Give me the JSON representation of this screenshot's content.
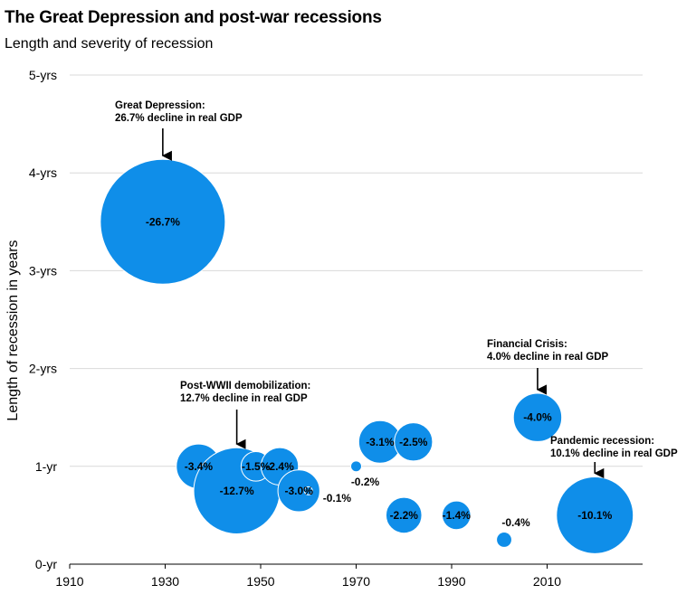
{
  "page": {
    "title": "The Great Depression and post-war recessions",
    "subtitle": "Length and severity of recession"
  },
  "chart_data": {
    "type": "bubble",
    "title": "The Great Depression and post-war recessions",
    "subtitle": "Length and severity of recession",
    "ylabel": "Length of recession in years",
    "xlabel": "",
    "xlim": [
      1910,
      2030
    ],
    "ylim": [
      0,
      5
    ],
    "xticks": [
      1910,
      1930,
      1950,
      1970,
      1990,
      2010
    ],
    "yticks": [
      {
        "value": 0,
        "label": "0-yr"
      },
      {
        "value": 1,
        "label": "1-yr"
      },
      {
        "value": 2,
        "label": "2-yrs"
      },
      {
        "value": 3,
        "label": "3-yrs"
      },
      {
        "value": 4,
        "label": "4-yrs"
      },
      {
        "value": 5,
        "label": "5-yrs"
      }
    ],
    "grid": "horizontal",
    "bubble_color": "#0f8ee9",
    "points": [
      {
        "x": 1929.5,
        "y": 3.5,
        "gdp_decline": 26.7,
        "label": "-26.7%",
        "label_position": "center"
      },
      {
        "x": 1937,
        "y": 1.0,
        "gdp_decline": 3.4,
        "label": "-3.4%",
        "label_position": "center"
      },
      {
        "x": 1945,
        "y": 0.75,
        "gdp_decline": 12.7,
        "label": "-12.7%",
        "label_position": "center"
      },
      {
        "x": 1949,
        "y": 1.0,
        "gdp_decline": 1.5,
        "label": "-1.5%",
        "label_position": "center"
      },
      {
        "x": 1954,
        "y": 1.0,
        "gdp_decline": 2.4,
        "label": "-2.4%",
        "label_position": "center"
      },
      {
        "x": 1958,
        "y": 0.75,
        "gdp_decline": 3.0,
        "label": "-3.0%",
        "label_position": "center"
      },
      {
        "x": 1960,
        "y": 0.75,
        "gdp_decline": 0.1,
        "label": "-0.1%",
        "label_position": "right"
      },
      {
        "x": 1970,
        "y": 1.0,
        "gdp_decline": 0.2,
        "label": "-0.2%",
        "label_position": "below"
      },
      {
        "x": 1975,
        "y": 1.25,
        "gdp_decline": 3.1,
        "label": "-3.1%",
        "label_position": "center"
      },
      {
        "x": 1982,
        "y": 1.25,
        "gdp_decline": 2.5,
        "label": "-2.5%",
        "label_position": "center"
      },
      {
        "x": 1980,
        "y": 0.5,
        "gdp_decline": 2.2,
        "label": "-2.2%",
        "label_position": "center"
      },
      {
        "x": 1991,
        "y": 0.5,
        "gdp_decline": 1.4,
        "label": "-1.4%",
        "label_position": "center"
      },
      {
        "x": 2001,
        "y": 0.25,
        "gdp_decline": 0.4,
        "label": "-0.4%",
        "label_position": "above"
      },
      {
        "x": 2008,
        "y": 1.5,
        "gdp_decline": 4.0,
        "label": "-4.0%",
        "label_position": "center"
      },
      {
        "x": 2020,
        "y": 0.5,
        "gdp_decline": 10.1,
        "label": "-10.1%",
        "label_position": "center"
      }
    ],
    "annotations": [
      {
        "name": "great-depression",
        "lines": [
          "Great Depression:",
          "26.7% decline in real GDP"
        ],
        "arrow_to_point": 0
      },
      {
        "name": "post-wwii",
        "lines": [
          "Post-WWII demobilization:",
          "12.7% decline in real GDP"
        ],
        "arrow_to_point": 2
      },
      {
        "name": "financial-crisis",
        "lines": [
          "Financial Crisis:",
          "4.0% decline in real GDP"
        ],
        "arrow_to_point": 13
      },
      {
        "name": "pandemic",
        "lines": [
          "Pandemic recession:",
          "10.1% decline in real GDP"
        ],
        "arrow_to_point": 14
      }
    ]
  }
}
